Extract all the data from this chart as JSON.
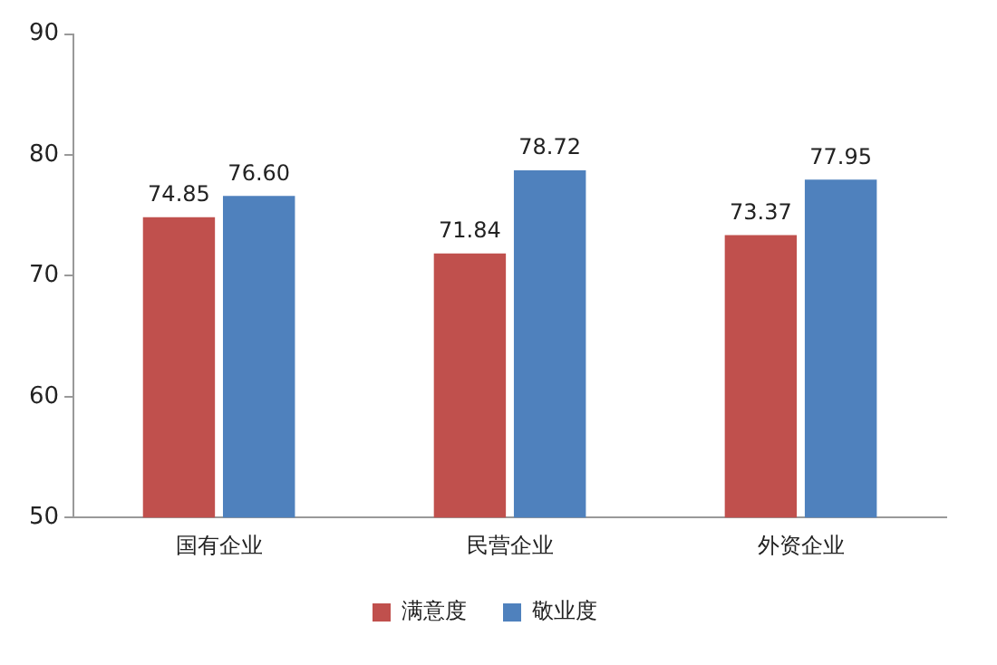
{
  "chart_data": {
    "type": "bar",
    "categories": [
      "国有企业",
      "民营企业",
      "外资企业"
    ],
    "series": [
      {
        "name": "满意度",
        "color": "#c0504d",
        "values": [
          74.85,
          71.84,
          73.37
        ],
        "value_labels": [
          "74.85",
          "71.84",
          "73.37"
        ]
      },
      {
        "name": "敬业度",
        "color": "#4f81bd",
        "values": [
          76.6,
          78.72,
          77.95
        ],
        "value_labels": [
          "76.60",
          "78.72",
          "77.95"
        ]
      }
    ],
    "ylim": [
      50,
      90
    ],
    "yticks": [
      50,
      60,
      70,
      80,
      90
    ],
    "grid": false,
    "legend": "bottom"
  }
}
